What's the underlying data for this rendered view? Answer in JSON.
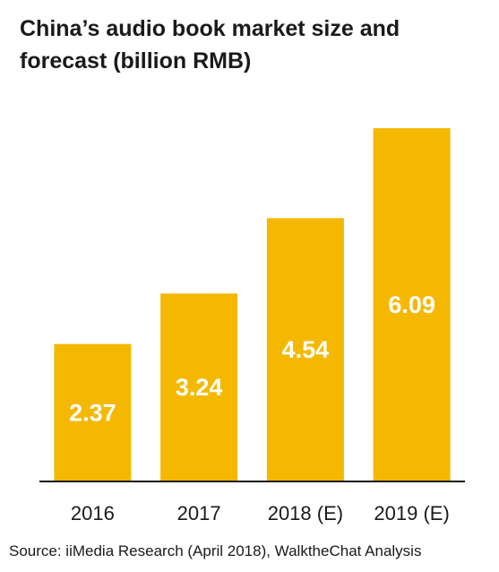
{
  "title": "China’s audio book market size and forecast (billion RMB)",
  "source": "Source: iiMedia Research (April 2018), WalktheChat Analysis",
  "colors": {
    "bar": "#F5B800",
    "axis": "#1a1a1a",
    "label": "#ffffff"
  },
  "chart_data": {
    "type": "bar",
    "title": "China’s audio book market size and forecast (billion RMB)",
    "xlabel": "",
    "ylabel": "",
    "categories": [
      "2016",
      "2017",
      "2018 (E)",
      "2019 (E)"
    ],
    "values": [
      2.37,
      3.24,
      4.54,
      6.09
    ],
    "value_labels": [
      "2.37",
      "3.24",
      "4.54",
      "6.09"
    ],
    "ylim": [
      0,
      6.09
    ],
    "grid": false,
    "legend": "none"
  }
}
